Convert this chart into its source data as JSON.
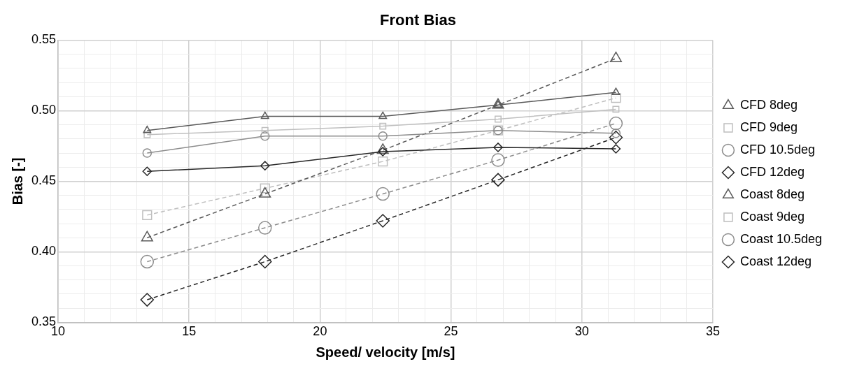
{
  "chart_data": {
    "type": "line",
    "title": "Front Bias",
    "xlabel": "Speed/ velocity [m/s]",
    "ylabel": "Bias [-]",
    "x": [
      13.4,
      17.9,
      22.4,
      26.8,
      31.3
    ],
    "series": [
      {
        "name": "CFD 8deg",
        "color": "#595959",
        "marker": "triangle",
        "line_style": "solid",
        "values": [
          0.486,
          0.496,
          0.496,
          0.504,
          0.513
        ]
      },
      {
        "name": "CFD 9deg",
        "color": "#bfbfbf",
        "marker": "square",
        "line_style": "solid",
        "values": [
          0.483,
          0.486,
          0.489,
          0.494,
          0.501
        ]
      },
      {
        "name": "CFD 10.5deg",
        "color": "#8c8c8c",
        "marker": "circle",
        "line_style": "solid",
        "values": [
          0.47,
          0.482,
          0.482,
          0.486,
          0.484
        ]
      },
      {
        "name": "CFD 12deg",
        "color": "#262626",
        "marker": "diamond",
        "line_style": "solid",
        "values": [
          0.457,
          0.461,
          0.471,
          0.474,
          0.473
        ]
      },
      {
        "name": "Coast 8deg",
        "color": "#595959",
        "marker": "triangle",
        "line_style": "dashed",
        "values": [
          0.41,
          0.441,
          0.472,
          0.504,
          0.537
        ]
      },
      {
        "name": "Coast 9deg",
        "color": "#bfbfbf",
        "marker": "square",
        "line_style": "dashed",
        "values": [
          0.426,
          0.445,
          0.464,
          0.486,
          0.509
        ]
      },
      {
        "name": "Coast 10.5deg",
        "color": "#8c8c8c",
        "marker": "circle",
        "line_style": "dashed",
        "values": [
          0.393,
          0.417,
          0.441,
          0.465,
          0.491
        ]
      },
      {
        "name": "Coast 12deg",
        "color": "#262626",
        "marker": "diamond",
        "line_style": "dashed",
        "values": [
          0.366,
          0.393,
          0.422,
          0.451,
          0.481
        ]
      }
    ],
    "xlim": [
      10,
      35
    ],
    "xticks": [
      10,
      {
        "value": 11,
        "label": null
      },
      {
        "value": 12,
        "label": null
      },
      {
        "value": 13,
        "label": null
      },
      {
        "value": 14,
        "label": null
      },
      15,
      {
        "value": 16,
        "label": null
      },
      {
        "value": 17,
        "label": null
      },
      {
        "value": 18,
        "label": null
      },
      {
        "value": 19,
        "label": null
      },
      20,
      {
        "value": 21,
        "label": null
      },
      {
        "value": 22,
        "label": null
      },
      {
        "value": 23,
        "label": null
      },
      {
        "value": 24,
        "label": null
      },
      25,
      {
        "value": 26,
        "label": null
      },
      {
        "value": 27,
        "label": null
      },
      {
        "value": 28,
        "label": null
      },
      {
        "value": 29,
        "label": null
      },
      30,
      {
        "value": 31,
        "label": null
      },
      {
        "value": 32,
        "label": null
      },
      {
        "value": 33,
        "label": null
      },
      {
        "value": 34,
        "label": null
      },
      35
    ],
    "ylim": [
      0.35,
      0.55
    ],
    "yticks": [
      {
        "value": 0.35,
        "label": "0.35"
      },
      {
        "value": 0.36,
        "label": null
      },
      {
        "value": 0.37,
        "label": null
      },
      {
        "value": 0.38,
        "label": null
      },
      {
        "value": 0.39,
        "label": null
      },
      {
        "value": 0.4,
        "label": "0.40"
      },
      {
        "value": 0.41,
        "label": null
      },
      {
        "value": 0.42,
        "label": null
      },
      {
        "value": 0.43,
        "label": null
      },
      {
        "value": 0.44,
        "label": null
      },
      {
        "value": 0.45,
        "label": "0.45"
      },
      {
        "value": 0.46,
        "label": null
      },
      {
        "value": 0.47,
        "label": null
      },
      {
        "value": 0.48,
        "label": null
      },
      {
        "value": 0.49,
        "label": null
      },
      {
        "value": 0.5,
        "label": "0.50"
      },
      {
        "value": 0.51,
        "label": null
      },
      {
        "value": 0.52,
        "label": null
      },
      {
        "value": 0.53,
        "label": null
      },
      {
        "value": 0.54,
        "label": null
      },
      {
        "value": 0.55,
        "label": "0.55"
      }
    ],
    "grid": true,
    "legend": "right"
  }
}
